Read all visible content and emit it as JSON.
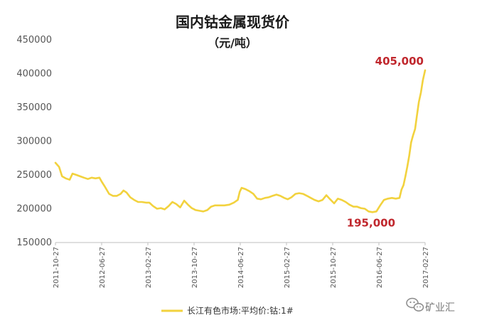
{
  "chart_data": {
    "type": "line",
    "title": "国内钴金属现货价",
    "subtitle": "（元/吨）",
    "xlabel": "",
    "ylabel": "",
    "ylim": [
      150000,
      450000
    ],
    "yticks": [
      150000,
      200000,
      250000,
      300000,
      350000,
      400000,
      450000
    ],
    "ytick_labels": [
      "150000",
      "200000",
      "250000",
      "300000",
      "350000",
      "400000",
      "450000"
    ],
    "xlim": [
      "2011-10-27",
      "2017-02-27"
    ],
    "xtick_labels": [
      "2011-10-27",
      "2012-06-27",
      "2013-02-27",
      "2013-10-27",
      "2014-06-27",
      "2015-02-27",
      "2015-10-27",
      "2016-06-27",
      "2017-02-27"
    ],
    "grid": false,
    "legend_position": "bottom",
    "line_color": "#f2d23e",
    "series": [
      {
        "name": "长江有色市场:平均价:钴:1#",
        "points": [
          [
            "2011-10-27",
            268000
          ],
          [
            "2011-11-15",
            262000
          ],
          [
            "2011-12-01",
            248000
          ],
          [
            "2011-12-20",
            245000
          ],
          [
            "2012-01-10",
            243000
          ],
          [
            "2012-01-25",
            252000
          ],
          [
            "2012-02-15",
            250000
          ],
          [
            "2012-03-05",
            248000
          ],
          [
            "2012-03-25",
            246000
          ],
          [
            "2012-04-15",
            244000
          ],
          [
            "2012-05-05",
            246000
          ],
          [
            "2012-05-25",
            245000
          ],
          [
            "2012-06-15",
            246000
          ],
          [
            "2012-06-27",
            240000
          ],
          [
            "2012-07-15",
            232000
          ],
          [
            "2012-08-05",
            222000
          ],
          [
            "2012-08-25",
            219000
          ],
          [
            "2012-09-15",
            219000
          ],
          [
            "2012-10-05",
            222000
          ],
          [
            "2012-10-20",
            227000
          ],
          [
            "2012-11-05",
            224000
          ],
          [
            "2012-11-25",
            217000
          ],
          [
            "2012-12-15",
            213000
          ],
          [
            "2013-01-05",
            210000
          ],
          [
            "2013-01-25",
            210000
          ],
          [
            "2013-02-15",
            209000
          ],
          [
            "2013-03-05",
            209000
          ],
          [
            "2013-03-25",
            204000
          ],
          [
            "2013-04-15",
            200000
          ],
          [
            "2013-05-05",
            201000
          ],
          [
            "2013-05-25",
            199000
          ],
          [
            "2013-06-15",
            204000
          ],
          [
            "2013-07-05",
            210000
          ],
          [
            "2013-07-25",
            207000
          ],
          [
            "2013-08-15",
            202000
          ],
          [
            "2013-09-05",
            212000
          ],
          [
            "2013-09-25",
            206000
          ],
          [
            "2013-10-15",
            201000
          ],
          [
            "2013-11-05",
            198000
          ],
          [
            "2013-11-25",
            197000
          ],
          [
            "2013-12-15",
            196000
          ],
          [
            "2014-01-05",
            198000
          ],
          [
            "2014-01-25",
            203000
          ],
          [
            "2014-02-15",
            205000
          ],
          [
            "2014-03-10",
            205000
          ],
          [
            "2014-04-05",
            205000
          ],
          [
            "2014-05-01",
            206000
          ],
          [
            "2014-05-25",
            209000
          ],
          [
            "2014-06-15",
            213000
          ],
          [
            "2014-06-25",
            225000
          ],
          [
            "2014-07-05",
            231000
          ],
          [
            "2014-07-25",
            229000
          ],
          [
            "2014-08-15",
            226000
          ],
          [
            "2014-09-05",
            222000
          ],
          [
            "2014-09-25",
            215000
          ],
          [
            "2014-10-15",
            214000
          ],
          [
            "2014-11-05",
            216000
          ],
          [
            "2014-11-25",
            217000
          ],
          [
            "2014-12-15",
            219000
          ],
          [
            "2015-01-05",
            221000
          ],
          [
            "2015-01-25",
            219000
          ],
          [
            "2015-02-15",
            216000
          ],
          [
            "2015-03-05",
            214000
          ],
          [
            "2015-03-25",
            217000
          ],
          [
            "2015-04-15",
            222000
          ],
          [
            "2015-05-05",
            223000
          ],
          [
            "2015-05-25",
            222000
          ],
          [
            "2015-06-15",
            219000
          ],
          [
            "2015-07-05",
            216000
          ],
          [
            "2015-07-25",
            213000
          ],
          [
            "2015-08-15",
            211000
          ],
          [
            "2015-09-05",
            213000
          ],
          [
            "2015-09-25",
            220000
          ],
          [
            "2015-10-15",
            214000
          ],
          [
            "2015-11-05",
            208000
          ],
          [
            "2015-11-25",
            215000
          ],
          [
            "2015-12-15",
            213000
          ],
          [
            "2016-01-05",
            210000
          ],
          [
            "2016-01-25",
            206000
          ],
          [
            "2016-02-15",
            203000
          ],
          [
            "2016-03-05",
            203000
          ],
          [
            "2016-03-25",
            201000
          ],
          [
            "2016-04-15",
            200000
          ],
          [
            "2016-05-05",
            196000
          ],
          [
            "2016-05-25",
            195000
          ],
          [
            "2016-06-15",
            196000
          ],
          [
            "2016-07-05",
            205000
          ],
          [
            "2016-07-25",
            213000
          ],
          [
            "2016-08-15",
            215000
          ],
          [
            "2016-09-05",
            216000
          ],
          [
            "2016-09-25",
            215000
          ],
          [
            "2016-10-15",
            216000
          ],
          [
            "2016-10-25",
            228000
          ],
          [
            "2016-11-05",
            235000
          ],
          [
            "2016-11-15",
            248000
          ],
          [
            "2016-11-25",
            262000
          ],
          [
            "2016-12-05",
            278000
          ],
          [
            "2016-12-15",
            298000
          ],
          [
            "2016-12-25",
            308000
          ],
          [
            "2017-01-05",
            318000
          ],
          [
            "2017-01-15",
            338000
          ],
          [
            "2017-01-25",
            358000
          ],
          [
            "2017-02-05",
            372000
          ],
          [
            "2017-02-15",
            390000
          ],
          [
            "2017-02-27",
            405000
          ]
        ]
      }
    ],
    "annotations": [
      {
        "text": "405,000",
        "x": "2017-02-27",
        "y": 405000,
        "color": "#c0272d"
      },
      {
        "text": "195,000",
        "x": "2016-05-25",
        "y": 195000,
        "color": "#c0272d"
      }
    ]
  },
  "watermark": {
    "icon": "wechat-icon",
    "text": "矿业汇"
  }
}
